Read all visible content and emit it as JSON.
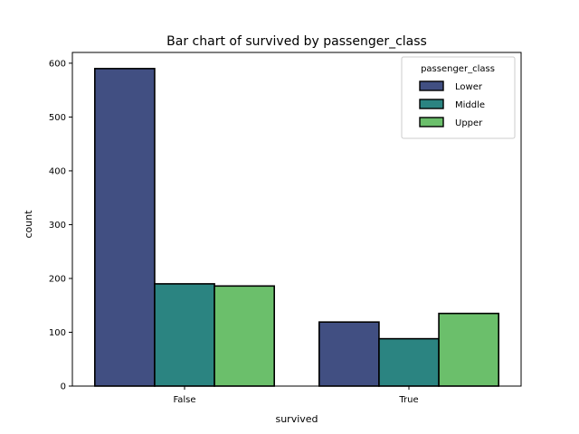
{
  "chart_data": {
    "type": "bar",
    "title": "Bar chart of survived by passenger_class",
    "xlabel": "survived",
    "ylabel": "count",
    "categories": [
      "False",
      "True"
    ],
    "series": [
      {
        "name": "Lower",
        "values": [
          590,
          119
        ],
        "color": "#414f82"
      },
      {
        "name": "Middle",
        "values": [
          190,
          88
        ],
        "color": "#2b8481"
      },
      {
        "name": "Upper",
        "values": [
          186,
          135
        ],
        "color": "#6bbf6b"
      }
    ],
    "ylim": [
      0,
      620
    ],
    "yticks": [
      0,
      100,
      200,
      300,
      400,
      500,
      600
    ],
    "legend": {
      "title": "passenger_class",
      "placement": "top-right"
    },
    "grid": false
  }
}
